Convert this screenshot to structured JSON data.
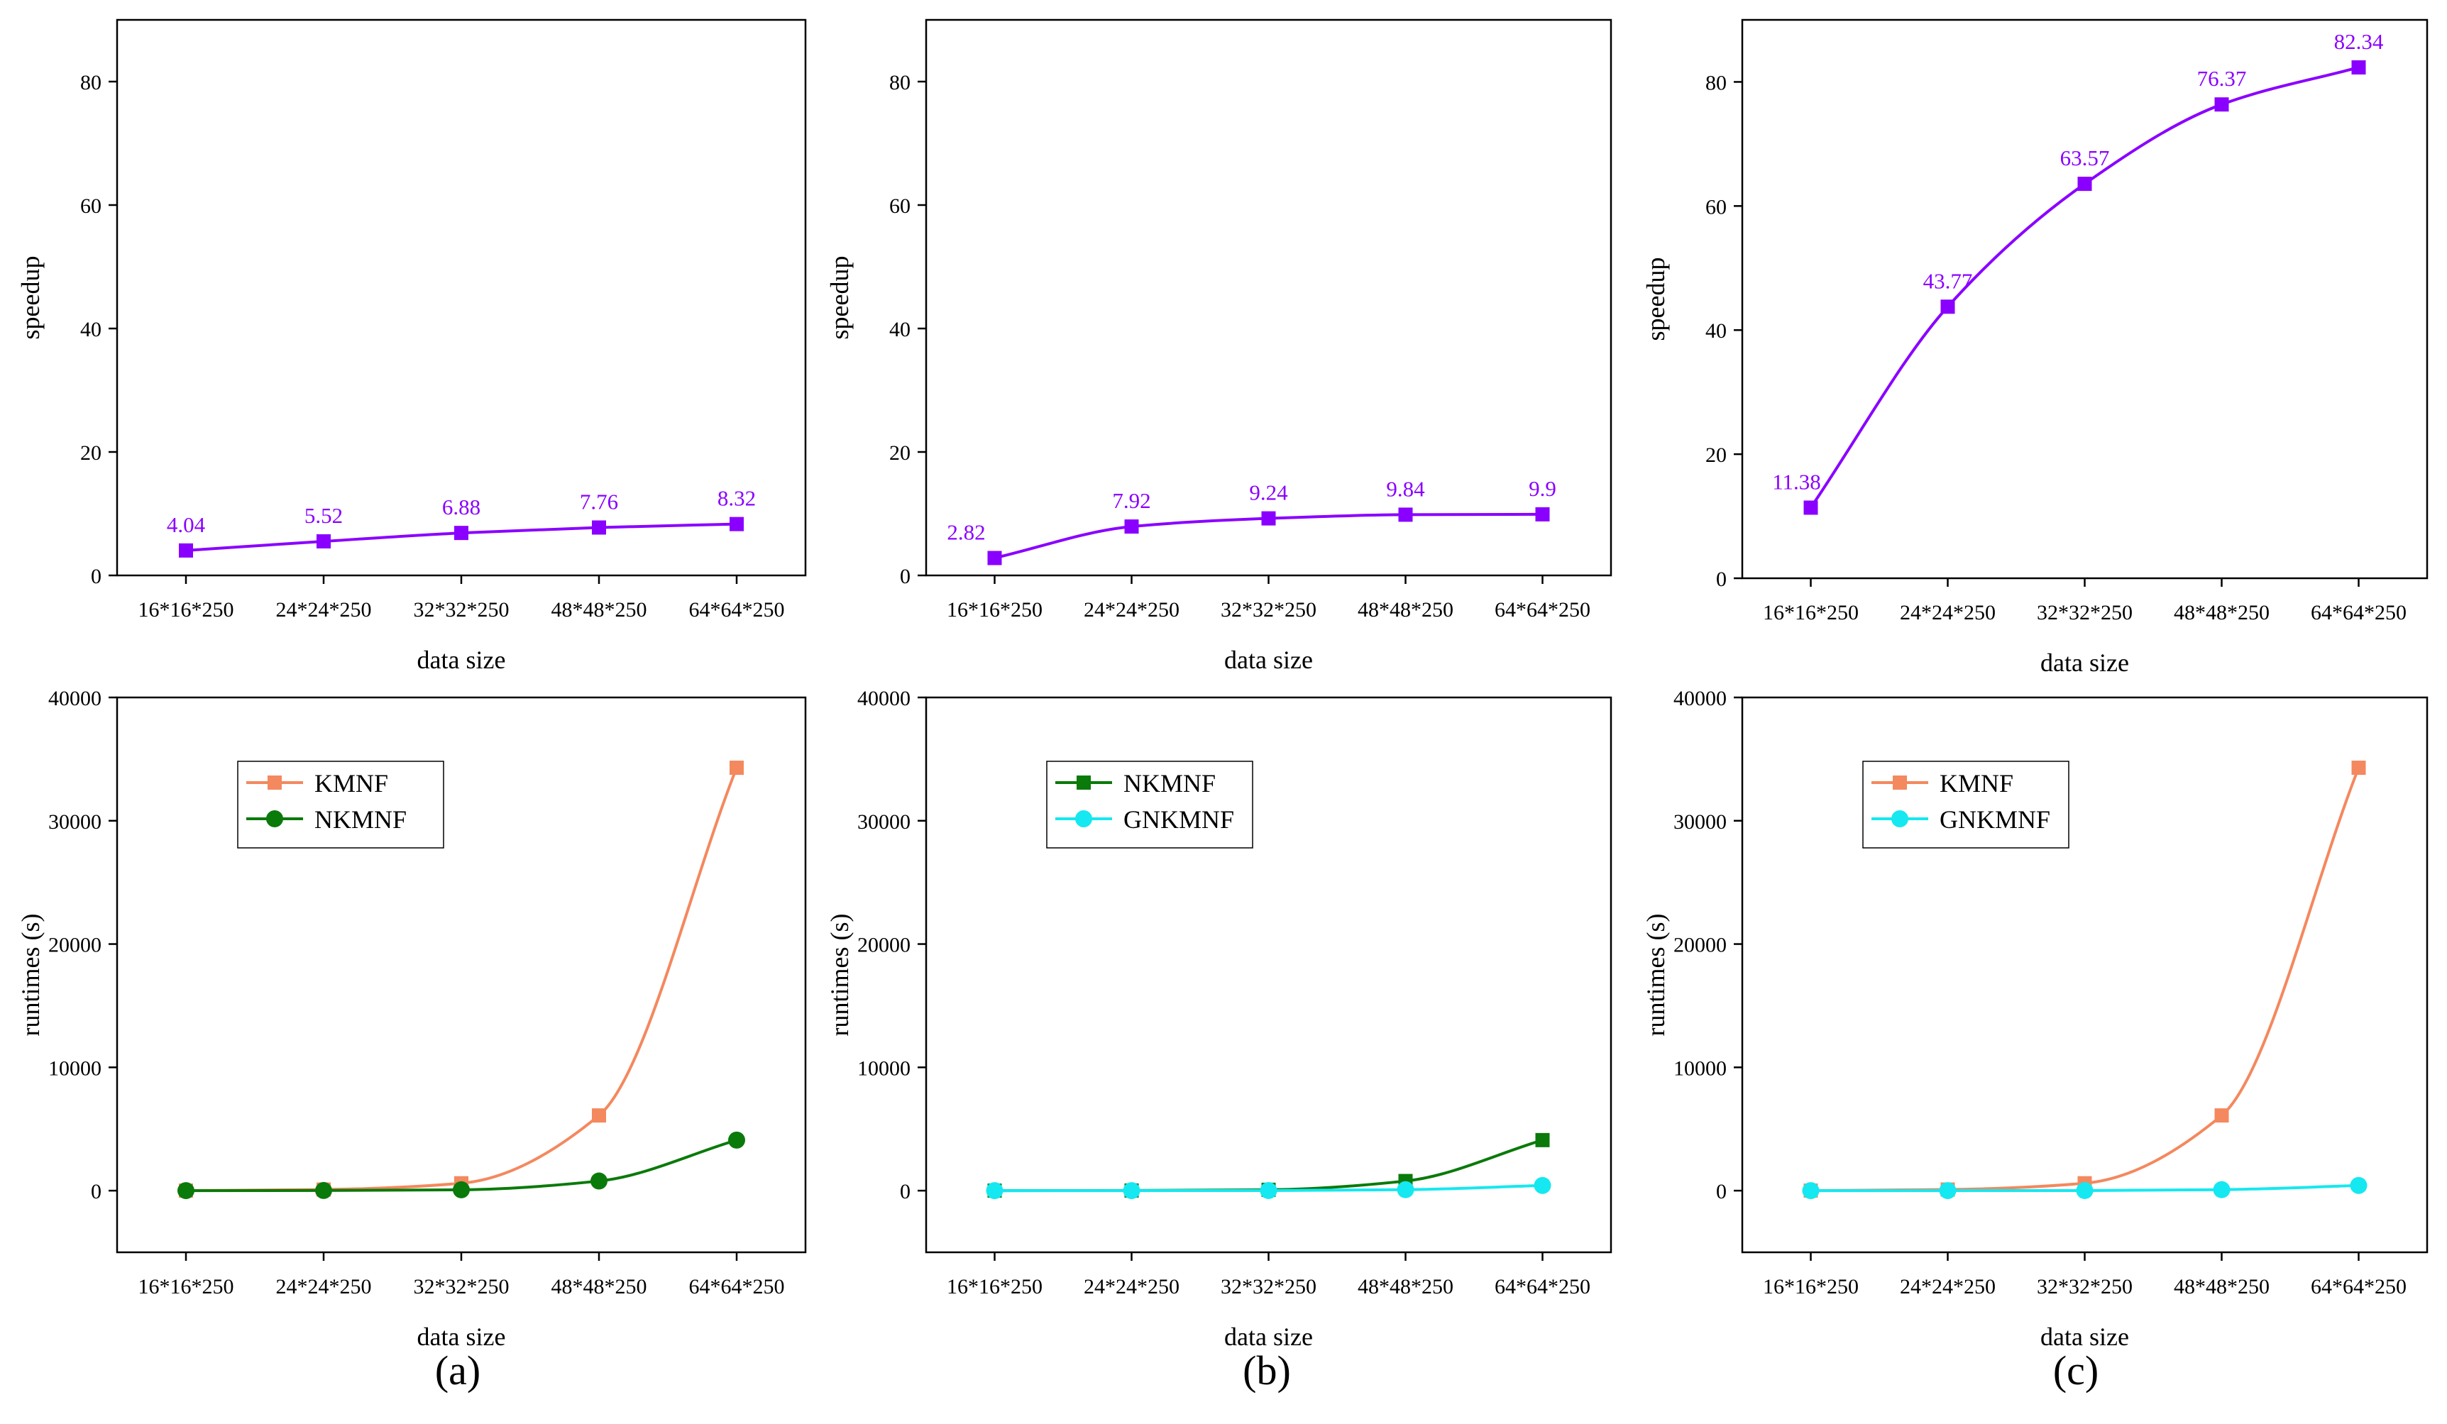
{
  "colors": {
    "speedup": "#8a00ff",
    "KMNF": "#f4885e",
    "NKMNF": "#0a7a0a",
    "GNKMNF": "#15e8f0",
    "axis": "#000000"
  },
  "captions": [
    "(a)",
    "(b)",
    "(c)"
  ],
  "chart_data": [
    {
      "type": "line",
      "panel": "a-top",
      "categories": [
        "16*16*250",
        "24*24*250",
        "32*32*250",
        "48*48*250",
        "64*64*250"
      ],
      "series": [
        {
          "values": [
            4.04,
            5.52,
            6.88,
            7.76,
            8.32
          ],
          "marker": "square",
          "color": "#8a00ff"
        }
      ],
      "data_labels": [
        "4.04",
        "5.52",
        "6.88",
        "7.76",
        "8.32"
      ],
      "xlabel": "data size",
      "ylabel": "speedup",
      "ylim": [
        0,
        90
      ],
      "yticks": [
        0,
        20,
        40,
        60,
        80
      ],
      "legend": "none",
      "grid": false
    },
    {
      "type": "line",
      "panel": "b-top",
      "categories": [
        "16*16*250",
        "24*24*250",
        "32*32*250",
        "48*48*250",
        "64*64*250"
      ],
      "series": [
        {
          "values": [
            2.82,
            7.92,
            9.24,
            9.84,
            9.9
          ],
          "marker": "square",
          "color": "#8a00ff"
        }
      ],
      "data_labels": [
        "2.82",
        "7.92",
        "9.24",
        "9.84",
        "9.9"
      ],
      "xlabel": "data size",
      "ylabel": "speedup",
      "ylim": [
        0,
        90
      ],
      "yticks": [
        0,
        20,
        40,
        60,
        80
      ],
      "legend": "none",
      "grid": false
    },
    {
      "type": "line",
      "panel": "c-top",
      "categories": [
        "16*16*250",
        "24*24*250",
        "32*32*250",
        "48*48*250",
        "64*64*250"
      ],
      "series": [
        {
          "values": [
            11.38,
            43.77,
            63.57,
            76.37,
            82.34
          ],
          "marker": "square",
          "color": "#8a00ff"
        }
      ],
      "data_labels": [
        "11.38",
        "43.77",
        "63.57",
        "76.37",
        "82.34"
      ],
      "xlabel": "data size",
      "ylabel": "speedup",
      "ylim": [
        0,
        90
      ],
      "yticks": [
        0,
        20,
        40,
        60,
        80
      ],
      "legend": "none",
      "grid": false
    },
    {
      "type": "line",
      "panel": "a-bottom",
      "categories": [
        "16*16*250",
        "24*24*250",
        "32*32*250",
        "48*48*250",
        "64*64*250"
      ],
      "series": [
        {
          "name": "KMNF",
          "values": [
            5,
            90,
            600,
            6100,
            34300
          ],
          "marker": "square",
          "color": "#f4885e"
        },
        {
          "name": "NKMNF",
          "values": [
            2,
            10,
            70,
            780,
            4100
          ],
          "marker": "circle",
          "color": "#0a7a0a"
        }
      ],
      "xlabel": "data size",
      "ylabel": "runtimes (s)",
      "ylim": [
        -5000,
        40000
      ],
      "yticks": [
        0,
        10000,
        20000,
        30000,
        40000
      ],
      "legend": "upper-left",
      "grid": false
    },
    {
      "type": "line",
      "panel": "b-bottom",
      "categories": [
        "16*16*250",
        "24*24*250",
        "32*32*250",
        "48*48*250",
        "64*64*250"
      ],
      "series": [
        {
          "name": "NKMNF",
          "values": [
            2,
            10,
            70,
            780,
            4100
          ],
          "marker": "square",
          "color": "#0a7a0a"
        },
        {
          "name": "GNKMNF",
          "values": [
            1,
            2,
            8,
            80,
            420
          ],
          "marker": "circle",
          "color": "#15e8f0"
        }
      ],
      "xlabel": "data size",
      "ylabel": "runtimes (s)",
      "ylim": [
        -5000,
        40000
      ],
      "yticks": [
        0,
        10000,
        20000,
        30000,
        40000
      ],
      "legend": "upper-left",
      "grid": false
    },
    {
      "type": "line",
      "panel": "c-bottom",
      "categories": [
        "16*16*250",
        "24*24*250",
        "32*32*250",
        "48*48*250",
        "64*64*250"
      ],
      "series": [
        {
          "name": "KMNF",
          "values": [
            5,
            90,
            600,
            6100,
            34300
          ],
          "marker": "square",
          "color": "#f4885e"
        },
        {
          "name": "GNKMNF",
          "values": [
            1,
            2,
            8,
            80,
            420
          ],
          "marker": "circle",
          "color": "#15e8f0"
        }
      ],
      "xlabel": "data size",
      "ylabel": "runtimes (s)",
      "ylim": [
        -5000,
        40000
      ],
      "yticks": [
        0,
        10000,
        20000,
        30000,
        40000
      ],
      "legend": "upper-left",
      "grid": false
    }
  ]
}
